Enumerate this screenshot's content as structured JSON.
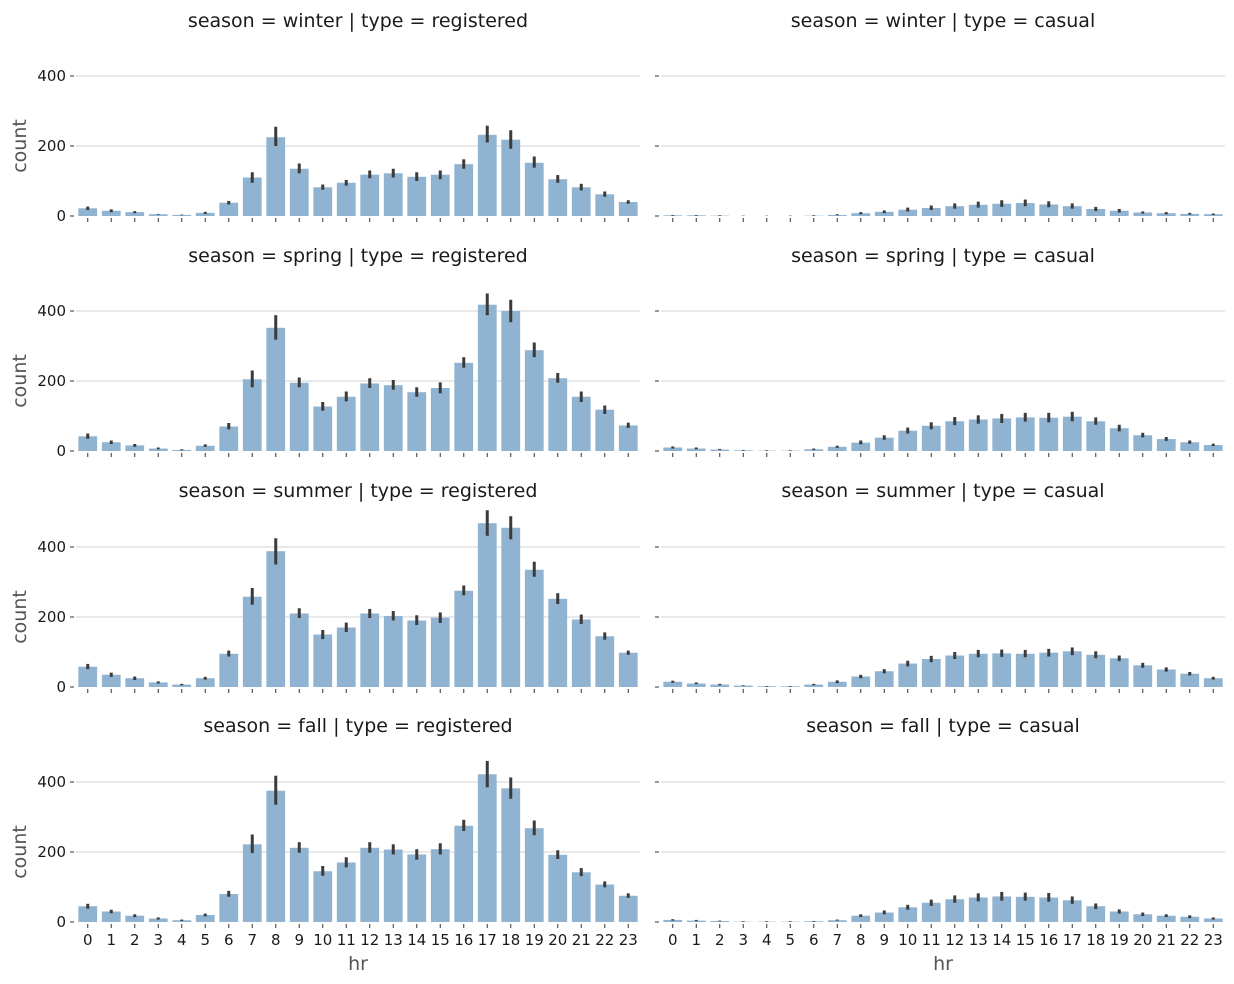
{
  "chart_data": {
    "type": "bar",
    "facet_layout": "4 rows x 2 columns, shared axes",
    "x_label": "hr",
    "y_label": "count",
    "ylim": [
      0,
      500
    ],
    "yticks": [
      0,
      200,
      400
    ],
    "grid": "horizontal",
    "bar_color": "#8fb3d0",
    "error_bar_color": "#3b3b3b",
    "categories": [
      "0",
      "1",
      "2",
      "3",
      "4",
      "5",
      "6",
      "7",
      "8",
      "9",
      "10",
      "11",
      "12",
      "13",
      "14",
      "15",
      "16",
      "17",
      "18",
      "19",
      "20",
      "21",
      "22",
      "23"
    ],
    "panels": [
      {
        "title": "season = winter | type = registered",
        "values": [
          22,
          15,
          11,
          5,
          3,
          9,
          38,
          110,
          225,
          135,
          82,
          95,
          118,
          122,
          112,
          118,
          148,
          232,
          218,
          152,
          105,
          82,
          62,
          40
        ],
        "error": [
          [
            17,
            27
          ],
          [
            11,
            19
          ],
          [
            8,
            14
          ],
          [
            4,
            6
          ],
          [
            2,
            4
          ],
          [
            6,
            12
          ],
          [
            33,
            43
          ],
          [
            95,
            125
          ],
          [
            200,
            255
          ],
          [
            122,
            150
          ],
          [
            75,
            90
          ],
          [
            87,
            103
          ],
          [
            108,
            130
          ],
          [
            110,
            135
          ],
          [
            100,
            125
          ],
          [
            105,
            130
          ],
          [
            135,
            162
          ],
          [
            210,
            258
          ],
          [
            192,
            245
          ],
          [
            138,
            170
          ],
          [
            95,
            117
          ],
          [
            73,
            92
          ],
          [
            55,
            70
          ],
          [
            35,
            45
          ]
        ]
      },
      {
        "title": "season = winter | type = casual",
        "values": [
          2,
          2,
          1,
          0,
          0,
          0,
          1,
          3,
          8,
          12,
          18,
          23,
          28,
          32,
          35,
          37,
          33,
          28,
          20,
          15,
          10,
          8,
          6,
          5
        ],
        "error": [
          [
            1,
            3
          ],
          [
            1,
            3
          ],
          [
            0,
            2
          ],
          [
            0,
            1
          ],
          [
            0,
            1
          ],
          [
            0,
            1
          ],
          [
            0,
            2
          ],
          [
            2,
            5
          ],
          [
            5,
            11
          ],
          [
            8,
            16
          ],
          [
            13,
            24
          ],
          [
            17,
            30
          ],
          [
            21,
            36
          ],
          [
            24,
            41
          ],
          [
            26,
            45
          ],
          [
            28,
            47
          ],
          [
            25,
            42
          ],
          [
            21,
            36
          ],
          [
            14,
            26
          ],
          [
            10,
            20
          ],
          [
            7,
            13
          ],
          [
            5,
            11
          ],
          [
            4,
            9
          ],
          [
            3,
            7
          ]
        ]
      },
      {
        "title": "season = spring | type = registered",
        "values": [
          42,
          25,
          16,
          7,
          3,
          15,
          70,
          205,
          352,
          195,
          127,
          155,
          193,
          188,
          168,
          180,
          252,
          418,
          400,
          288,
          208,
          155,
          118,
          73
        ],
        "error": [
          [
            35,
            50
          ],
          [
            20,
            30
          ],
          [
            12,
            20
          ],
          [
            5,
            10
          ],
          [
            2,
            5
          ],
          [
            12,
            19
          ],
          [
            62,
            80
          ],
          [
            182,
            230
          ],
          [
            318,
            388
          ],
          [
            182,
            210
          ],
          [
            115,
            140
          ],
          [
            142,
            170
          ],
          [
            180,
            208
          ],
          [
            175,
            203
          ],
          [
            155,
            182
          ],
          [
            165,
            196
          ],
          [
            238,
            268
          ],
          [
            388,
            450
          ],
          [
            368,
            432
          ],
          [
            268,
            310
          ],
          [
            195,
            223
          ],
          [
            140,
            170
          ],
          [
            106,
            130
          ],
          [
            66,
            81
          ]
        ]
      },
      {
        "title": "season = spring | type = casual",
        "values": [
          10,
          7,
          4,
          2,
          1,
          1,
          5,
          12,
          24,
          38,
          58,
          72,
          85,
          90,
          93,
          96,
          95,
          98,
          85,
          65,
          45,
          34,
          25,
          17
        ],
        "error": [
          [
            7,
            13
          ],
          [
            5,
            10
          ],
          [
            3,
            6
          ],
          [
            1,
            3
          ],
          [
            0,
            2
          ],
          [
            0,
            2
          ],
          [
            3,
            7
          ],
          [
            9,
            15
          ],
          [
            19,
            30
          ],
          [
            32,
            45
          ],
          [
            50,
            67
          ],
          [
            62,
            82
          ],
          [
            74,
            97
          ],
          [
            78,
            102
          ],
          [
            80,
            106
          ],
          [
            84,
            109
          ],
          [
            82,
            109
          ],
          [
            85,
            112
          ],
          [
            75,
            96
          ],
          [
            56,
            75
          ],
          [
            39,
            52
          ],
          [
            29,
            40
          ],
          [
            21,
            30
          ],
          [
            14,
            21
          ]
        ]
      },
      {
        "title": "season = summer | type = registered",
        "values": [
          58,
          35,
          25,
          13,
          7,
          25,
          95,
          258,
          388,
          210,
          150,
          170,
          210,
          203,
          190,
          198,
          275,
          468,
          455,
          335,
          252,
          193,
          145,
          98
        ],
        "error": [
          [
            51,
            66
          ],
          [
            29,
            41
          ],
          [
            20,
            30
          ],
          [
            10,
            16
          ],
          [
            5,
            9
          ],
          [
            21,
            29
          ],
          [
            87,
            104
          ],
          [
            235,
            283
          ],
          [
            350,
            425
          ],
          [
            197,
            225
          ],
          [
            137,
            163
          ],
          [
            157,
            184
          ],
          [
            197,
            223
          ],
          [
            190,
            217
          ],
          [
            177,
            205
          ],
          [
            183,
            213
          ],
          [
            262,
            290
          ],
          [
            432,
            505
          ],
          [
            422,
            488
          ],
          [
            315,
            358
          ],
          [
            237,
            268
          ],
          [
            180,
            207
          ],
          [
            135,
            156
          ],
          [
            92,
            104
          ]
        ]
      },
      {
        "title": "season = summer | type = casual",
        "values": [
          15,
          10,
          7,
          4,
          2,
          2,
          7,
          15,
          30,
          45,
          67,
          80,
          90,
          95,
          96,
          95,
          98,
          102,
          92,
          82,
          62,
          50,
          38,
          25
        ],
        "error": [
          [
            12,
            18
          ],
          [
            8,
            13
          ],
          [
            5,
            9
          ],
          [
            3,
            5
          ],
          [
            1,
            3
          ],
          [
            1,
            3
          ],
          [
            5,
            9
          ],
          [
            11,
            19
          ],
          [
            25,
            35
          ],
          [
            39,
            51
          ],
          [
            59,
            75
          ],
          [
            71,
            89
          ],
          [
            80,
            100
          ],
          [
            85,
            106
          ],
          [
            86,
            107
          ],
          [
            85,
            106
          ],
          [
            87,
            109
          ],
          [
            91,
            113
          ],
          [
            82,
            102
          ],
          [
            74,
            90
          ],
          [
            55,
            69
          ],
          [
            44,
            56
          ],
          [
            33,
            43
          ],
          [
            21,
            29
          ]
        ]
      },
      {
        "title": "season = fall | type = registered",
        "values": [
          45,
          30,
          18,
          10,
          5,
          20,
          80,
          222,
          375,
          212,
          145,
          170,
          212,
          207,
          193,
          208,
          275,
          422,
          382,
          268,
          192,
          142,
          107,
          75
        ],
        "error": [
          [
            38,
            52
          ],
          [
            25,
            35
          ],
          [
            14,
            22
          ],
          [
            7,
            13
          ],
          [
            3,
            7
          ],
          [
            16,
            24
          ],
          [
            72,
            89
          ],
          [
            197,
            250
          ],
          [
            335,
            418
          ],
          [
            198,
            228
          ],
          [
            132,
            160
          ],
          [
            156,
            185
          ],
          [
            198,
            228
          ],
          [
            193,
            222
          ],
          [
            178,
            208
          ],
          [
            193,
            225
          ],
          [
            260,
            292
          ],
          [
            385,
            460
          ],
          [
            352,
            413
          ],
          [
            248,
            290
          ],
          [
            180,
            205
          ],
          [
            131,
            154
          ],
          [
            99,
            116
          ],
          [
            69,
            82
          ]
        ]
      },
      {
        "title": "season = fall | type = casual",
        "values": [
          6,
          4,
          3,
          1,
          1,
          1,
          2,
          5,
          18,
          27,
          42,
          55,
          65,
          70,
          73,
          72,
          70,
          62,
          45,
          30,
          22,
          18,
          15,
          10
        ],
        "error": [
          [
            4,
            8
          ],
          [
            3,
            6
          ],
          [
            2,
            4
          ],
          [
            0,
            2
          ],
          [
            0,
            2
          ],
          [
            0,
            2
          ],
          [
            1,
            3
          ],
          [
            4,
            7
          ],
          [
            14,
            22
          ],
          [
            22,
            33
          ],
          [
            35,
            49
          ],
          [
            46,
            64
          ],
          [
            55,
            76
          ],
          [
            59,
            82
          ],
          [
            61,
            86
          ],
          [
            61,
            84
          ],
          [
            58,
            83
          ],
          [
            52,
            73
          ],
          [
            37,
            53
          ],
          [
            24,
            36
          ],
          [
            17,
            27
          ],
          [
            14,
            22
          ],
          [
            11,
            19
          ],
          [
            7,
            13
          ]
        ]
      }
    ]
  }
}
